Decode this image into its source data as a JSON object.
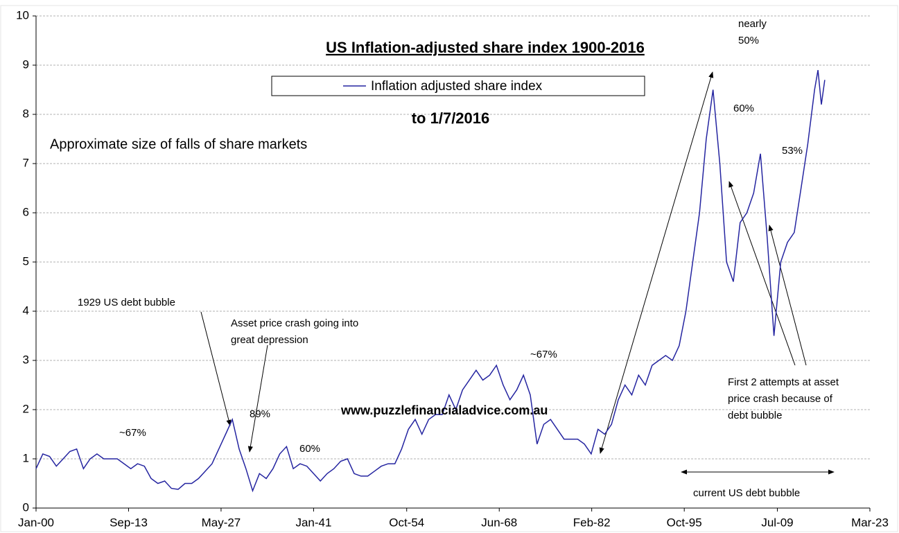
{
  "chart_data": {
    "type": "line",
    "title": "US Inflation-adjusted share index 1900-2016",
    "subtitle": "to 1/7/2016",
    "series": [
      {
        "name": "Inflation adjusted share index",
        "color": "#2424a0",
        "values": [
          0.8,
          1.1,
          1.05,
          0.85,
          1.0,
          1.15,
          1.2,
          0.8,
          1.0,
          1.1,
          1.0,
          1.0,
          1.0,
          0.9,
          0.8,
          0.9,
          0.85,
          0.6,
          0.5,
          0.55,
          0.4,
          0.38,
          0.5,
          0.5,
          0.6,
          0.75,
          0.9,
          1.2,
          1.5,
          1.8,
          1.2,
          0.8,
          0.35,
          0.7,
          0.6,
          0.8,
          1.1,
          1.25,
          0.8,
          0.9,
          0.85,
          0.7,
          0.55,
          0.7,
          0.8,
          0.95,
          1.0,
          0.7,
          0.65,
          0.65,
          0.75,
          0.85,
          0.9,
          0.9,
          1.2,
          1.6,
          1.8,
          1.5,
          1.8,
          1.9,
          1.9,
          2.3,
          2.0,
          2.4,
          2.6,
          2.8,
          2.6,
          2.7,
          2.9,
          2.5,
          2.2,
          2.4,
          2.7,
          2.3,
          1.3,
          1.7,
          1.8,
          1.6,
          1.4,
          1.4,
          1.4,
          1.3,
          1.1,
          1.6,
          1.5,
          1.7,
          2.2,
          2.5,
          2.3,
          2.7,
          2.5,
          2.9,
          3.0,
          3.1,
          3.0,
          3.3,
          4.0,
          5.0,
          6.0,
          7.5,
          8.5,
          7.0,
          5.0,
          4.6,
          5.8,
          6.0,
          6.4,
          7.2,
          5.5,
          3.5,
          5.0,
          5.4,
          5.6,
          6.5,
          7.4,
          8.5,
          8.9,
          8.2,
          8.7
        ]
      }
    ],
    "x": [
      1900,
      1901,
      1902,
      1903,
      1904,
      1905,
      1906,
      1907,
      1908,
      1909,
      1910,
      1911,
      1912,
      1913,
      1914,
      1915,
      1916,
      1917,
      1918,
      1919,
      1920,
      1921,
      1922,
      1923,
      1924,
      1925,
      1926,
      1927,
      1928,
      1929,
      1930,
      1931,
      1932,
      1933,
      1934,
      1935,
      1936,
      1937,
      1938,
      1939,
      1940,
      1941,
      1942,
      1943,
      1944,
      1945,
      1946,
      1947,
      1948,
      1949,
      1950,
      1951,
      1952,
      1953,
      1954,
      1955,
      1956,
      1957,
      1958,
      1959,
      1960,
      1961,
      1962,
      1963,
      1964,
      1965,
      1966,
      1967,
      1968,
      1969,
      1970,
      1971,
      1972,
      1973,
      1974,
      1975,
      1976,
      1977,
      1978,
      1979,
      1980,
      1981,
      1982,
      1983,
      1984,
      1985,
      1986,
      1987,
      1988,
      1989,
      1990,
      1991,
      1992,
      1993,
      1994,
      1995,
      1996,
      1997,
      1998,
      1999,
      2000,
      2001,
      2002,
      2003,
      2004,
      2005,
      2006,
      2007,
      2008,
      2009,
      2010,
      2011,
      2012,
      2013,
      2014,
      2015,
      2015.5,
      2016,
      2016.5
    ],
    "xlim": [
      1900,
      2023.17
    ],
    "xticks": [
      {
        "value": 1900,
        "label": "Jan-00"
      },
      {
        "value": 1913.67,
        "label": "Sep-13"
      },
      {
        "value": 1927.33,
        "label": "May-27"
      },
      {
        "value": 1941,
        "label": "Jan-41"
      },
      {
        "value": 1954.75,
        "label": "Oct-54"
      },
      {
        "value": 1968.42,
        "label": "Jun-68"
      },
      {
        "value": 1982.08,
        "label": "Feb-82"
      },
      {
        "value": 1995.75,
        "label": "Oct-95"
      },
      {
        "value": 2009.5,
        "label": "Jul-09"
      },
      {
        "value": 2023.17,
        "label": "Mar-23"
      }
    ],
    "ylim": [
      0,
      10
    ],
    "yticks": [
      0,
      1,
      2,
      3,
      4,
      5,
      6,
      7,
      8,
      9,
      10
    ],
    "grid": true,
    "annotations": [
      [
        "~67%"
      ],
      [
        "1929 US debt bubble"
      ],
      [
        "Asset price crash going into",
        "great depression"
      ],
      [
        "89%"
      ],
      [
        "60%"
      ],
      [
        "~67%"
      ],
      [
        "www.puzzlefinancialadvice.com.au"
      ],
      [
        "nearly",
        "50%"
      ],
      [
        "60%"
      ],
      [
        "53%"
      ],
      [
        "First 2 attempts at asset",
        "price crash because of",
        "debt bubble"
      ],
      [
        "current US debt bubble"
      ],
      [
        "Approximate  size of falls of share  markets"
      ]
    ]
  }
}
